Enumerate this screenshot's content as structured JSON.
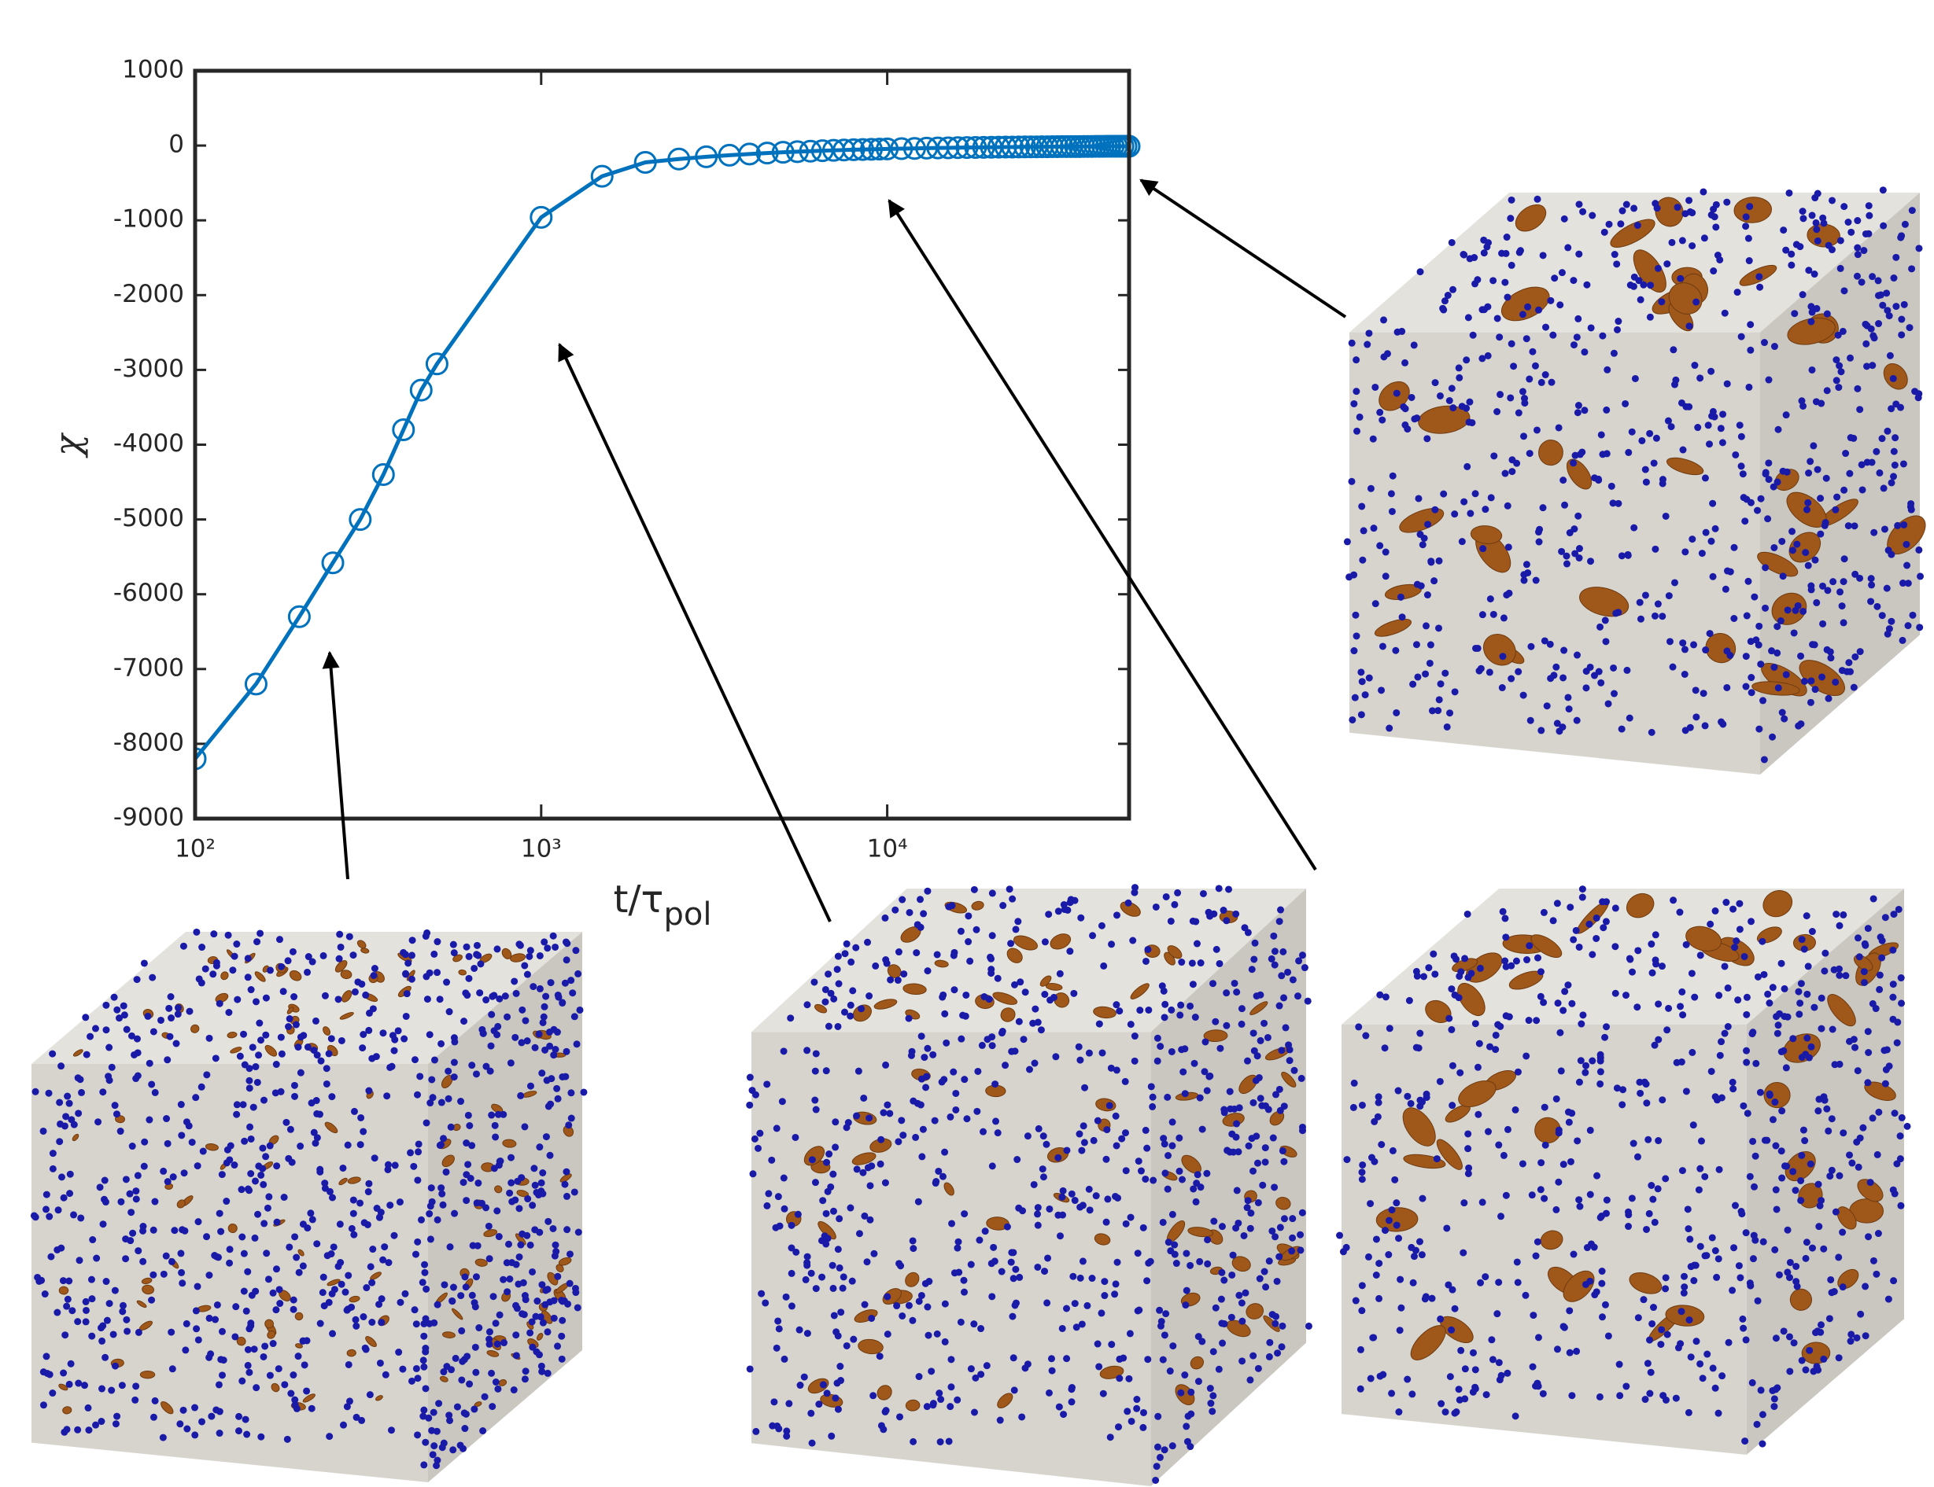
{
  "chart_data": {
    "type": "line",
    "xlabel": "t/τ_pol",
    "ylabel": "χ",
    "xscale": "log",
    "xlim": [
      100,
      50000
    ],
    "ylim": [
      -9000,
      1000
    ],
    "xticks": [
      {
        "value": 100,
        "label": "10²"
      },
      {
        "value": 1000,
        "label": "10³"
      },
      {
        "value": 10000,
        "label": "10⁴"
      }
    ],
    "yticks": [
      -9000,
      -8000,
      -7000,
      -6000,
      -5000,
      -4000,
      -3000,
      -2000,
      -1000,
      0,
      1000
    ],
    "series": [
      {
        "color": "#0072bd",
        "marker": "circle",
        "x": [
          100,
          150,
          200,
          250,
          300,
          350,
          400,
          450,
          500,
          1000,
          1500,
          2000,
          2500,
          3000,
          3500,
          4000,
          4500,
          5000,
          5500,
          6000,
          6500,
          7000,
          7500,
          8000,
          8500,
          9000,
          9500,
          10000,
          11000,
          12000,
          13000,
          14000,
          15000,
          16000,
          17000,
          18000,
          19000,
          20000,
          21000,
          22000,
          23000,
          24000,
          25000,
          26000,
          27000,
          28000,
          29000,
          30000,
          31000,
          32000,
          33000,
          34000,
          35000,
          36000,
          37000,
          38000,
          39000,
          40000,
          41000,
          42000,
          43000,
          44000,
          45000,
          46000,
          47000,
          48000,
          49000,
          50000
        ],
        "values": [
          -8200,
          -7200,
          -6300,
          -5580,
          -5000,
          -4400,
          -3800,
          -3270,
          -2920,
          -960,
          -410,
          -225,
          -180,
          -150,
          -129,
          -113,
          -100,
          -90,
          -82,
          -75,
          -69,
          -64,
          -60,
          -56,
          -53,
          -50,
          -47,
          -45,
          -41,
          -38,
          -35,
          -32,
          -30,
          -28,
          -26,
          -25,
          -24,
          -23,
          -21,
          -20,
          -20,
          -19,
          -18,
          -17,
          -17,
          -16,
          -16,
          -15,
          -15,
          -14,
          -14,
          -13,
          -13,
          -13,
          -12,
          -12,
          -12,
          -11,
          -11,
          -11,
          -10,
          -10,
          -10,
          -10,
          -10,
          -9,
          -9,
          -9
        ]
      }
    ]
  }
}
